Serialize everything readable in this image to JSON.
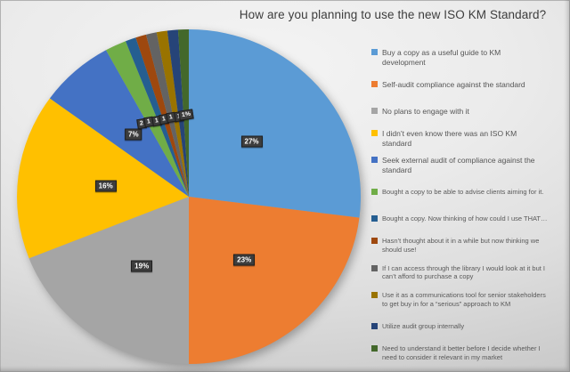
{
  "chart_data": {
    "type": "pie",
    "title": "How are you planning to use the new ISO KM Standard?",
    "legend_position": "right",
    "start_angle_deg": 0,
    "direction": "clockwise",
    "total_pct": 100,
    "slices": [
      {
        "label": "Buy a copy as a useful guide to KM development",
        "label_lines": [
          "Buy a copy as a useful guide to KM",
          "development"
        ],
        "value_pct": 27,
        "data_label": "27%",
        "color": "#5B9BD5"
      },
      {
        "label": "Self-audit compliance against the standard",
        "label_lines": [
          "Self-audit compliance against the standard"
        ],
        "value_pct": 23,
        "data_label": "23%",
        "color": "#ED7D31"
      },
      {
        "label": "No plans to engage with it",
        "label_lines": [
          "No plans to engage with it"
        ],
        "value_pct": 19,
        "data_label": "19%",
        "color": "#A5A5A5"
      },
      {
        "label": "I didn’t even know there was an ISO KM standard",
        "label_lines": [
          "I didn’t even know there was an ISO KM",
          "standard"
        ],
        "value_pct": 16,
        "data_label": "16%",
        "color": "#FFC000"
      },
      {
        "label": "Seek external audit of compliance against the standard",
        "label_lines": [
          "Seek external audit of compliance against the",
          "standard"
        ],
        "value_pct": 7,
        "data_label": "7%",
        "color": "#4472C4"
      },
      {
        "label": "Bought a copy to be able to advise clients aiming for it.",
        "label_lines": [
          "Bought a copy to be able to advise clients aiming for it."
        ],
        "value_pct": 2,
        "data_label": "2",
        "color": "#70AD47"
      },
      {
        "label": "Bought a copy. Now thinking of how could I use THAT…",
        "label_lines": [
          "Bought a copy. Now thinking of how could I use THAT…"
        ],
        "value_pct": 1,
        "data_label": "1",
        "color": "#255E91"
      },
      {
        "label": "Hasn’t thought about it in a while but now thinking we should use!",
        "label_lines": [
          "Hasn’t thought about it in a while but now thinking we",
          "should use!"
        ],
        "value_pct": 1,
        "data_label": "1",
        "color": "#9E480E"
      },
      {
        "label": "If I can access through the library I would look at it but I can’t afford to purchase a copy",
        "label_lines": [
          "If I can access through the library I would look at it but I",
          "can’t afford to purchase a copy"
        ],
        "value_pct": 1,
        "data_label": "1",
        "color": "#636363"
      },
      {
        "label": "Use it as a communications tool for senior stakeholders to get buy in for a “serious” approach to KM",
        "label_lines": [
          "Use it as a communications tool for senior stakeholders",
          "to get buy in for a “serious” approach to KM"
        ],
        "value_pct": 1,
        "data_label": "1",
        "color": "#997300"
      },
      {
        "label": "Utilize audit group internally",
        "label_lines": [
          "Utilize audit group internally"
        ],
        "value_pct": 1,
        "data_label": "1",
        "color": "#264478"
      },
      {
        "label": "Need to understand it better before I decide whether I need to consider it relevant in my market",
        "label_lines": [
          "Need to understand it better before I decide whether I",
          "need to consider it relevant in my market"
        ],
        "value_pct": 1,
        "data_label": "1%",
        "color": "#43682B"
      }
    ]
  }
}
